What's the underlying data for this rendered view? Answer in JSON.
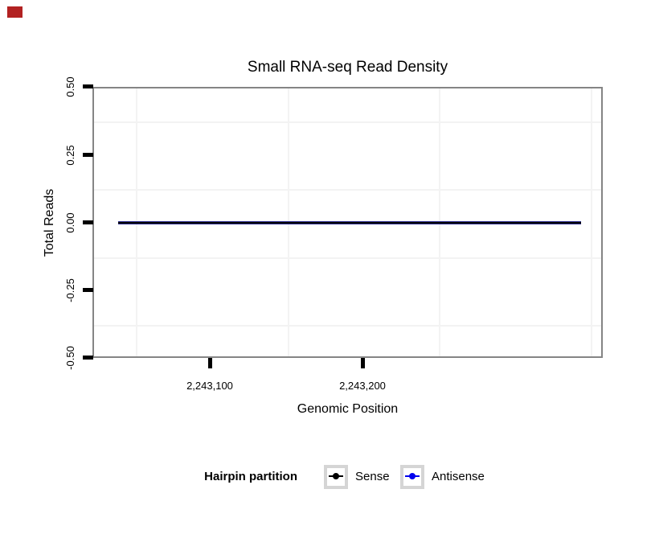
{
  "marker": {
    "color": "#B22222"
  },
  "chart_data": {
    "type": "line",
    "title": "Small RNA-seq Read Density",
    "xlabel": "Genomic Position",
    "ylabel": "Total Reads",
    "xlim": [
      2243023,
      2243357
    ],
    "ylim": [
      -0.5,
      0.5
    ],
    "x_ticks": [
      {
        "label": "2,243,100",
        "value": 2243100
      },
      {
        "label": "2,243,200",
        "value": 2243200
      }
    ],
    "y_ticks": [
      {
        "label": "0.50",
        "value": 0.5
      },
      {
        "label": "0.25",
        "value": 0.25
      },
      {
        "label": "0.00",
        "value": 0.0
      },
      {
        "label": "-0.25",
        "value": -0.25
      },
      {
        "label": "-0.50",
        "value": -0.5
      }
    ],
    "grid": "minor gridlines only, very light gray, no major gridlines visible",
    "panel_border_color": "#858585",
    "gridline_color": "#f3f3f3",
    "legend": {
      "title": "Hairpin partition",
      "position": "bottom",
      "items": [
        {
          "label": "Sense",
          "color": "#000000"
        },
        {
          "label": "Antisense",
          "color": "#0000EE"
        }
      ]
    },
    "series": [
      {
        "name": "Sense",
        "color": "#000000",
        "x_start": 2243040,
        "x_end": 2243342,
        "y_values": "constant 0 across entire span"
      },
      {
        "name": "Antisense",
        "color": "#0000EE",
        "x_start": 2243040,
        "x_end": 2243342,
        "y_values": "constant 0 across entire span"
      }
    ]
  }
}
